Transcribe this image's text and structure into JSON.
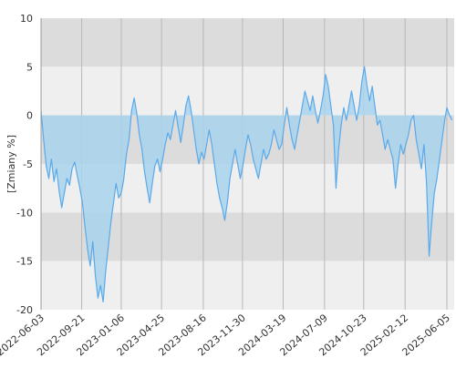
{
  "chart_data": {
    "type": "line",
    "ylabel": "[Zmiany %]",
    "ylim": [
      -20,
      10
    ],
    "y_ticks": [
      10,
      5,
      0,
      -5,
      -10,
      -15,
      -20
    ],
    "x_ticks": [
      "2022-06-03",
      "2022-09-21",
      "2023-01-06",
      "2023-04-25",
      "2023-08-16",
      "2023-11-30",
      "2024-03-19",
      "2024-07-09",
      "2024-10-23",
      "2025-02-12",
      "2025-06-05"
    ],
    "grid": true,
    "series": [
      {
        "values": [
          [
            "2022-06-03",
            0.5
          ],
          [
            "2022-06-10",
            -2.5
          ],
          [
            "2022-06-17",
            -5.2
          ],
          [
            "2022-06-24",
            -6.5
          ],
          [
            "2022-07-01",
            -4.5
          ],
          [
            "2022-07-08",
            -6.8
          ],
          [
            "2022-07-15",
            -5.5
          ],
          [
            "2022-07-22",
            -7.8
          ],
          [
            "2022-07-29",
            -9.5
          ],
          [
            "2022-08-05",
            -8.0
          ],
          [
            "2022-08-12",
            -6.5
          ],
          [
            "2022-08-19",
            -7.2
          ],
          [
            "2022-08-26",
            -5.5
          ],
          [
            "2022-09-02",
            -4.8
          ],
          [
            "2022-09-09",
            -6.2
          ],
          [
            "2022-09-16",
            -7.5
          ],
          [
            "2022-09-23",
            -9.0
          ],
          [
            "2022-09-30",
            -11.5
          ],
          [
            "2022-10-07",
            -13.8
          ],
          [
            "2022-10-14",
            -15.5
          ],
          [
            "2022-10-21",
            -13.0
          ],
          [
            "2022-10-28",
            -16.5
          ],
          [
            "2022-11-04",
            -18.8
          ],
          [
            "2022-11-11",
            -17.5
          ],
          [
            "2022-11-18",
            -19.2
          ],
          [
            "2022-11-25",
            -16.0
          ],
          [
            "2022-12-02",
            -13.5
          ],
          [
            "2022-12-09",
            -11.0
          ],
          [
            "2022-12-16",
            -9.0
          ],
          [
            "2022-12-23",
            -7.0
          ],
          [
            "2022-12-30",
            -8.5
          ],
          [
            "2023-01-06",
            -8.0
          ],
          [
            "2023-01-13",
            -6.5
          ],
          [
            "2023-01-20",
            -4.0
          ],
          [
            "2023-01-27",
            -2.5
          ],
          [
            "2023-02-03",
            0.5
          ],
          [
            "2023-02-10",
            1.8
          ],
          [
            "2023-02-17",
            0.2
          ],
          [
            "2023-02-24",
            -2.0
          ],
          [
            "2023-03-03",
            -3.5
          ],
          [
            "2023-03-10",
            -5.8
          ],
          [
            "2023-03-17",
            -7.5
          ],
          [
            "2023-03-24",
            -9.0
          ],
          [
            "2023-03-31",
            -7.0
          ],
          [
            "2023-04-07",
            -5.2
          ],
          [
            "2023-04-14",
            -4.5
          ],
          [
            "2023-04-21",
            -5.8
          ],
          [
            "2023-04-28",
            -4.5
          ],
          [
            "2023-05-05",
            -3.0
          ],
          [
            "2023-05-12",
            -1.8
          ],
          [
            "2023-05-19",
            -2.5
          ],
          [
            "2023-05-26",
            -1.0
          ],
          [
            "2023-06-02",
            0.5
          ],
          [
            "2023-06-09",
            -1.2
          ],
          [
            "2023-06-16",
            -2.8
          ],
          [
            "2023-06-23",
            -1.0
          ],
          [
            "2023-06-30",
            1.0
          ],
          [
            "2023-07-07",
            2.0
          ],
          [
            "2023-07-14",
            0.5
          ],
          [
            "2023-07-21",
            -1.5
          ],
          [
            "2023-07-28",
            -3.5
          ],
          [
            "2023-08-04",
            -5.0
          ],
          [
            "2023-08-11",
            -3.8
          ],
          [
            "2023-08-18",
            -4.5
          ],
          [
            "2023-08-25",
            -3.0
          ],
          [
            "2023-09-01",
            -1.5
          ],
          [
            "2023-09-08",
            -3.0
          ],
          [
            "2023-09-15",
            -5.0
          ],
          [
            "2023-09-22",
            -7.0
          ],
          [
            "2023-09-29",
            -8.5
          ],
          [
            "2023-10-06",
            -9.5
          ],
          [
            "2023-10-13",
            -10.8
          ],
          [
            "2023-10-20",
            -9.0
          ],
          [
            "2023-10-27",
            -6.5
          ],
          [
            "2023-11-03",
            -5.0
          ],
          [
            "2023-11-10",
            -3.5
          ],
          [
            "2023-11-17",
            -5.0
          ],
          [
            "2023-11-24",
            -6.5
          ],
          [
            "2023-12-01",
            -5.2
          ],
          [
            "2023-12-08",
            -3.5
          ],
          [
            "2023-12-15",
            -2.0
          ],
          [
            "2023-12-22",
            -3.0
          ],
          [
            "2023-12-29",
            -4.5
          ],
          [
            "2024-01-05",
            -5.5
          ],
          [
            "2024-01-12",
            -6.5
          ],
          [
            "2024-01-19",
            -5.0
          ],
          [
            "2024-01-26",
            -3.5
          ],
          [
            "2024-02-02",
            -4.5
          ],
          [
            "2024-02-09",
            -4.0
          ],
          [
            "2024-02-16",
            -3.0
          ],
          [
            "2024-02-23",
            -1.5
          ],
          [
            "2024-03-01",
            -2.5
          ],
          [
            "2024-03-08",
            -3.5
          ],
          [
            "2024-03-15",
            -3.0
          ],
          [
            "2024-03-22",
            -1.0
          ],
          [
            "2024-03-29",
            0.8
          ],
          [
            "2024-04-05",
            -1.0
          ],
          [
            "2024-04-12",
            -2.5
          ],
          [
            "2024-04-19",
            -3.5
          ],
          [
            "2024-04-26",
            -2.0
          ],
          [
            "2024-05-03",
            -0.5
          ],
          [
            "2024-05-10",
            1.0
          ],
          [
            "2024-05-17",
            2.5
          ],
          [
            "2024-05-24",
            1.5
          ],
          [
            "2024-05-31",
            0.5
          ],
          [
            "2024-06-07",
            2.0
          ],
          [
            "2024-06-14",
            0.5
          ],
          [
            "2024-06-21",
            -0.8
          ],
          [
            "2024-06-28",
            0.5
          ],
          [
            "2024-07-05",
            2.0
          ],
          [
            "2024-07-12",
            4.2
          ],
          [
            "2024-07-19",
            3.0
          ],
          [
            "2024-07-26",
            1.0
          ],
          [
            "2024-08-02",
            -1.0
          ],
          [
            "2024-08-09",
            -7.5
          ],
          [
            "2024-08-16",
            -3.5
          ],
          [
            "2024-08-23",
            -1.0
          ],
          [
            "2024-08-30",
            0.8
          ],
          [
            "2024-09-06",
            -0.5
          ],
          [
            "2024-09-13",
            1.0
          ],
          [
            "2024-09-20",
            2.5
          ],
          [
            "2024-09-27",
            1.0
          ],
          [
            "2024-10-04",
            -0.5
          ],
          [
            "2024-10-11",
            1.0
          ],
          [
            "2024-10-18",
            3.5
          ],
          [
            "2024-10-25",
            5.0
          ],
          [
            "2024-11-01",
            3.0
          ],
          [
            "2024-11-08",
            1.5
          ],
          [
            "2024-11-15",
            3.0
          ],
          [
            "2024-11-22",
            1.0
          ],
          [
            "2024-11-29",
            -1.0
          ],
          [
            "2024-12-06",
            -0.5
          ],
          [
            "2024-12-13",
            -2.0
          ],
          [
            "2024-12-20",
            -3.5
          ],
          [
            "2024-12-27",
            -2.5
          ],
          [
            "2025-01-03",
            -3.5
          ],
          [
            "2025-01-10",
            -4.5
          ],
          [
            "2025-01-17",
            -7.5
          ],
          [
            "2025-01-24",
            -5.0
          ],
          [
            "2025-01-31",
            -3.0
          ],
          [
            "2025-02-07",
            -4.0
          ],
          [
            "2025-02-14",
            -3.0
          ],
          [
            "2025-02-21",
            -2.0
          ],
          [
            "2025-02-28",
            -0.5
          ],
          [
            "2025-03-07",
            0.0
          ],
          [
            "2025-03-14",
            -2.5
          ],
          [
            "2025-03-21",
            -4.0
          ],
          [
            "2025-03-28",
            -5.5
          ],
          [
            "2025-04-04",
            -3.0
          ],
          [
            "2025-04-11",
            -7.0
          ],
          [
            "2025-04-18",
            -14.5
          ],
          [
            "2025-04-25",
            -11.0
          ],
          [
            "2025-05-02",
            -8.0
          ],
          [
            "2025-05-09",
            -6.5
          ],
          [
            "2025-05-16",
            -4.5
          ],
          [
            "2025-05-23",
            -2.5
          ],
          [
            "2025-05-30",
            -0.5
          ],
          [
            "2025-06-05",
            0.8
          ],
          [
            "2025-06-12",
            0.0
          ],
          [
            "2025-06-19",
            -0.5
          ]
        ]
      }
    ],
    "colors": {
      "line": "#5aa9ea",
      "fill_below_zero": "#a8d3ec",
      "fill_above_zero": "#c5e3f3",
      "band_dark": "#dcdcdc",
      "band_light": "#efefef",
      "vgrid": "#b8b8b8"
    }
  }
}
